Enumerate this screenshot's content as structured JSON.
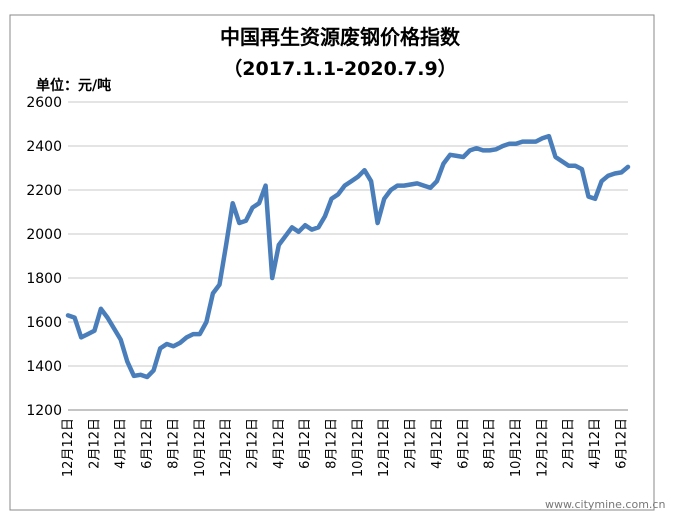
{
  "chart_data": {
    "type": "line",
    "title": "中国再生资源废钢价格指数",
    "subtitle": "（2017.1.1-2020.7.9）",
    "y_label": "单位：元/吨",
    "watermark": "www.citymine.com.cn",
    "color": "#4a7ebb",
    "grid": true,
    "ylim": [
      1200,
      2600
    ],
    "yticks": [
      1200,
      1400,
      1600,
      1800,
      2000,
      2200,
      2400,
      2600
    ],
    "categories": [
      "12月12日",
      null,
      null,
      null,
      "2月12日",
      null,
      null,
      null,
      "4月12日",
      null,
      null,
      null,
      "6月12日",
      null,
      null,
      null,
      "8月12日",
      null,
      null,
      null,
      "10月12日",
      null,
      null,
      null,
      "12月12日",
      null,
      null,
      null,
      "2月12日",
      null,
      null,
      null,
      "4月12日",
      null,
      null,
      null,
      "6月12日",
      null,
      null,
      null,
      "8月12日",
      null,
      null,
      null,
      "10月12日",
      null,
      null,
      null,
      "12月12日",
      null,
      null,
      null,
      "2月12日",
      null,
      null,
      null,
      "4月12日",
      null,
      null,
      null,
      "6月12日",
      null,
      null,
      null,
      "8月12日",
      null,
      null,
      null,
      "10月12日",
      null,
      null,
      null,
      "12月12日",
      null,
      null,
      null,
      "2月12日",
      null,
      null,
      null,
      "4月12日",
      null,
      null,
      null,
      "6月12日",
      null
    ],
    "values": [
      1630,
      1620,
      1530,
      1545,
      1560,
      1660,
      1620,
      1570,
      1520,
      1420,
      1355,
      1360,
      1350,
      1380,
      1480,
      1500,
      1490,
      1505,
      1530,
      1545,
      1545,
      1600,
      1730,
      1770,
      1950,
      2140,
      2050,
      2060,
      2120,
      2140,
      2220,
      1800,
      1950,
      1990,
      2030,
      2010,
      2040,
      2020,
      2030,
      2080,
      2160,
      2180,
      2220,
      2240,
      2260,
      2290,
      2240,
      2050,
      2160,
      2200,
      2220,
      2220,
      2225,
      2230,
      2220,
      2210,
      2240,
      2320,
      2360,
      2355,
      2350,
      2380,
      2390,
      2380,
      2380,
      2385,
      2400,
      2410,
      2410,
      2420,
      2420,
      2420,
      2435,
      2445,
      2350,
      2330,
      2310,
      2310,
      2295,
      2170,
      2160,
      2240,
      2265,
      2275,
      2280,
      2305
    ]
  }
}
